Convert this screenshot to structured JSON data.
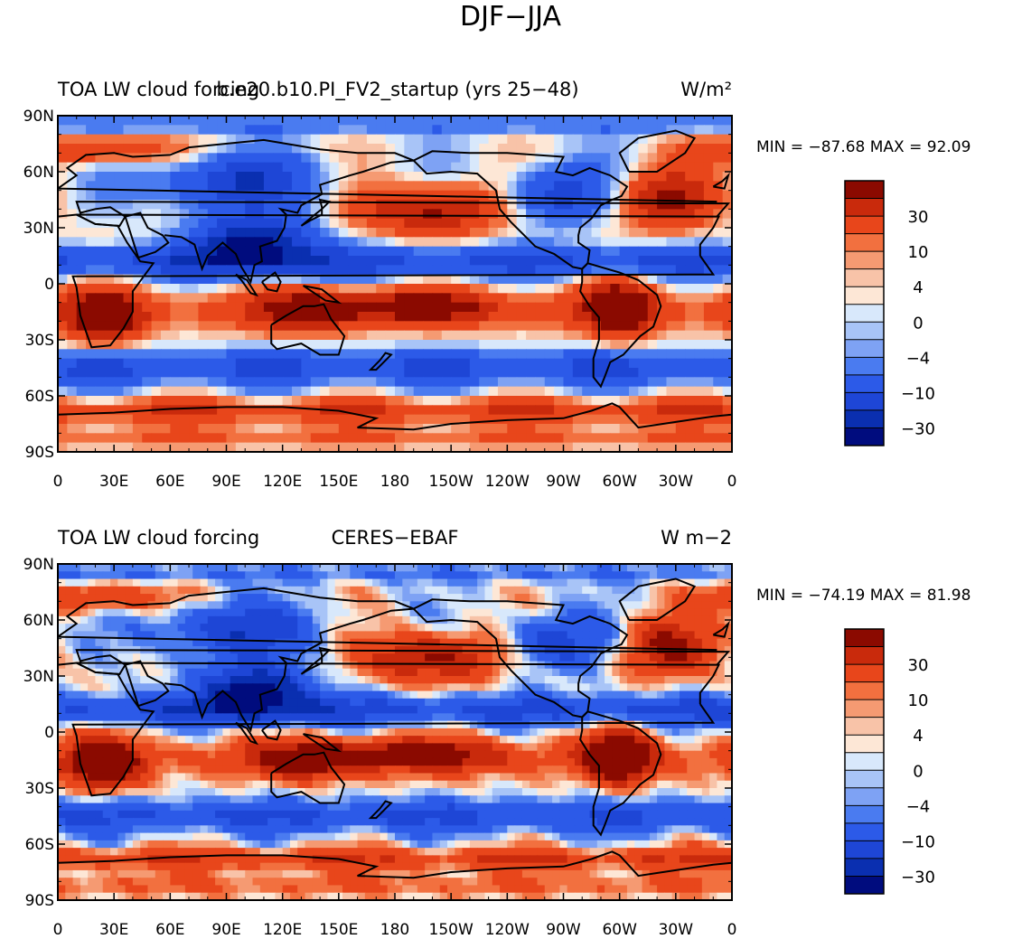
{
  "figure": {
    "title": "DJF−JJA"
  },
  "colors": {
    "map_levels": [
      "#000c7e",
      "#0a2fb0",
      "#1e46d6",
      "#2c5ae8",
      "#4a7bf0",
      "#7ea2f4",
      "#a8c4f7",
      "#d8e8fb",
      "#fde7d6",
      "#f8c3a8",
      "#f59a72",
      "#f2703f",
      "#e8461b",
      "#c92a0c",
      "#8b0a00"
    ],
    "land_outline": "#000000",
    "axis": "#000000"
  },
  "colorbar_labels": [
    "30",
    "10",
    "4",
    "0",
    "−4",
    "−10",
    "−30"
  ],
  "x_ticks": [
    "0",
    "30E",
    "60E",
    "90E",
    "120E",
    "150E",
    "180",
    "150W",
    "120W",
    "90W",
    "60W",
    "30W",
    "0"
  ],
  "y_ticks": [
    "90N",
    "60N",
    "30N",
    "0",
    "30S",
    "60S",
    "90S"
  ],
  "chart_data": [
    {
      "type": "heatmap",
      "panel": "top",
      "title_left": "TOA LW cloud forcing",
      "title_center": "b.e20.b10.PI_FV2_startup (yrs 25−48)",
      "units": "W/m²",
      "stats": {
        "min_label": "MIN =",
        "min": "−87.68",
        "max_label": "MAX =",
        "max": "92.09"
      },
      "x_range": [
        0,
        360
      ],
      "y_range": [
        -90,
        90
      ],
      "contour_levels": [
        -50,
        -40,
        -30,
        -20,
        -10,
        -6,
        -4,
        -2,
        0,
        2,
        4,
        6,
        10,
        20,
        30,
        40,
        50
      ]
    },
    {
      "type": "heatmap",
      "panel": "bottom",
      "title_left": "TOA LW cloud forcing",
      "title_center": "CERES−EBAF",
      "units": "W m−2",
      "stats": {
        "min_label": "MIN =",
        "min": "−74.19",
        "max_label": "MAX =",
        "max": "81.98"
      },
      "x_range": [
        0,
        360
      ],
      "y_range": [
        -90,
        90
      ],
      "contour_levels": [
        -50,
        -40,
        -30,
        -20,
        -10,
        -6,
        -4,
        -2,
        0,
        2,
        4,
        6,
        10,
        20,
        30,
        40,
        50
      ]
    }
  ]
}
